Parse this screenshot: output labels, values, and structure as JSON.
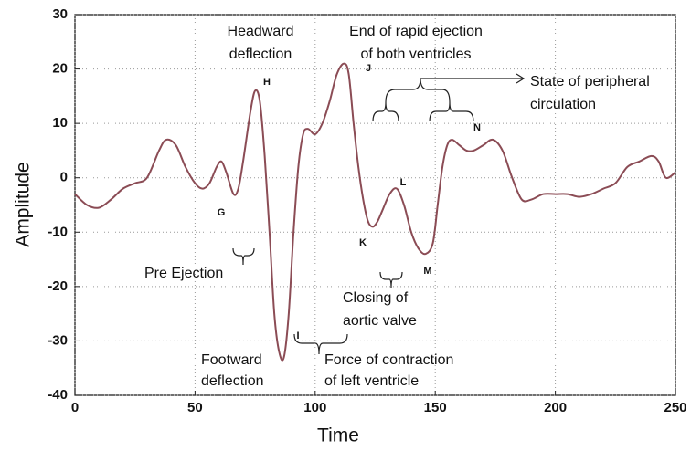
{
  "chart_data": {
    "type": "line",
    "x_label": "Time",
    "y_label": "Amplitude",
    "x": [
      0,
      5,
      10,
      15,
      20,
      25,
      30,
      35,
      38,
      42,
      46,
      50,
      53,
      56,
      59,
      61,
      63,
      66,
      68,
      70,
      73,
      75,
      77,
      79,
      81,
      83,
      85,
      87,
      89,
      91,
      93,
      95,
      97,
      100,
      103,
      106,
      109,
      112,
      114,
      116,
      118,
      120,
      122,
      124,
      126,
      128,
      131,
      134,
      137,
      140,
      143,
      146,
      149,
      151,
      153,
      155,
      157,
      160,
      163,
      166,
      170,
      174,
      178,
      182,
      186,
      190,
      195,
      200,
      205,
      210,
      215,
      220,
      225,
      230,
      235,
      240,
      243,
      246,
      250
    ],
    "values": [
      -3,
      -5,
      -5.5,
      -4,
      -2,
      -1,
      0,
      5,
      7,
      6,
      2,
      -1,
      -2,
      -1,
      2,
      3,
      1,
      -3,
      -2,
      3,
      12,
      16,
      14,
      4,
      -10,
      -25,
      -32,
      -33,
      -25,
      -10,
      2,
      8,
      9,
      8,
      10,
      14,
      19,
      21,
      19,
      10,
      2,
      -4,
      -8,
      -9,
      -8,
      -6,
      -3,
      -2,
      -5,
      -10,
      -13,
      -14,
      -12,
      -5,
      2,
      6,
      7,
      6,
      5,
      5,
      6,
      7,
      5,
      0,
      -4,
      -4,
      -3,
      -3,
      -3,
      -3.5,
      -3,
      -2,
      -1,
      2,
      3,
      4,
      3,
      0,
      1
    ],
    "color": "#8b4c55",
    "xlim": [
      0,
      250
    ],
    "xticks": [
      0,
      50,
      100,
      150,
      200,
      250
    ],
    "ylim": [
      -40,
      30
    ],
    "yticks": [
      -40,
      -30,
      -20,
      -10,
      0,
      10,
      20,
      30
    ],
    "grid": true,
    "annotations": [
      [
        "Headward",
        "deflection"
      ],
      [
        "End of rapid ejection",
        "of both  ventricles"
      ],
      [
        "State of peripheral",
        "circulation"
      ],
      [
        "Pre Ejection"
      ],
      [
        "Closing of",
        "aortic valve"
      ],
      [
        "Footward",
        "deflection"
      ],
      [
        "Force of contraction",
        "of left ventricle"
      ],
      [
        "H"
      ],
      [
        "G"
      ],
      [
        "I"
      ],
      [
        "J"
      ],
      [
        "K"
      ],
      [
        "L"
      ],
      [
        "M"
      ],
      [
        "N"
      ]
    ]
  }
}
